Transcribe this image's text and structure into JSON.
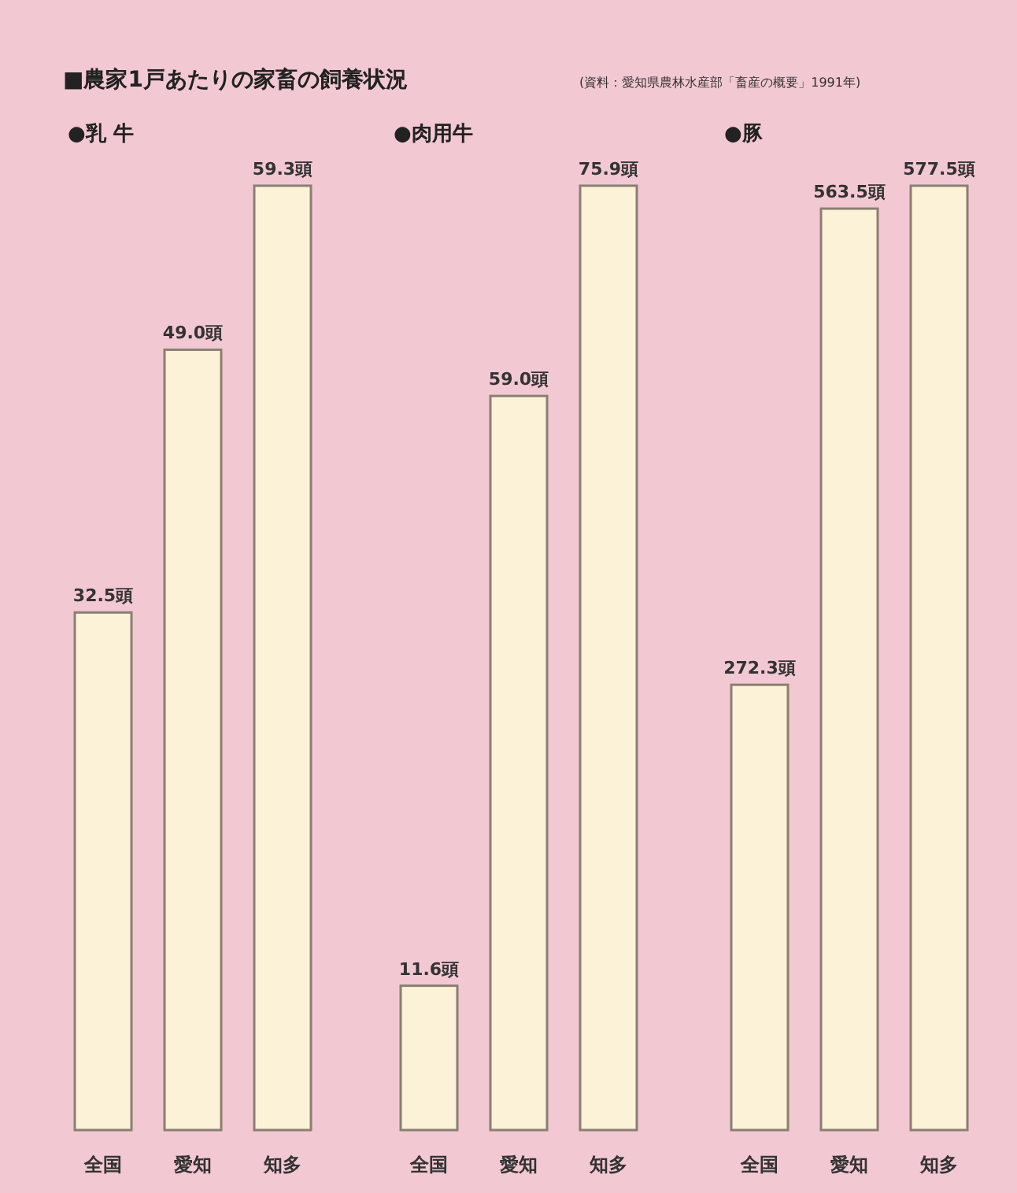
{
  "chart_data": [
    {
      "type": "bar",
      "title": "●乳 牛",
      "annotations": [
        "■農家1戸あたりの家畜の飼養状況",
        "(資料：愛知県農林水産部「畜産の概要」1991年)"
      ],
      "categories": [
        "全国",
        "愛知",
        "知多"
      ],
      "values": [
        32.5,
        49.0,
        59.3
      ],
      "value_labels": [
        "32.5頭",
        "49.0頭",
        "59.3頭"
      ],
      "color": "#fbf2d8"
    },
    {
      "type": "bar",
      "title": "●肉用牛",
      "categories": [
        "全国",
        "愛知",
        "知多"
      ],
      "values": [
        11.6,
        59.0,
        75.9
      ],
      "value_labels": [
        "11.6頭",
        "59.0頭",
        "75.9頭"
      ],
      "color": "#fbf2d8"
    },
    {
      "type": "bar",
      "title": "●豚",
      "categories": [
        "全国",
        "愛知",
        "知多"
      ],
      "values": [
        272.3,
        563.5,
        577.5
      ],
      "value_labels": [
        "272.3頭",
        "563.5頭",
        "577.5頭"
      ],
      "color": "#fbf2d8"
    }
  ]
}
